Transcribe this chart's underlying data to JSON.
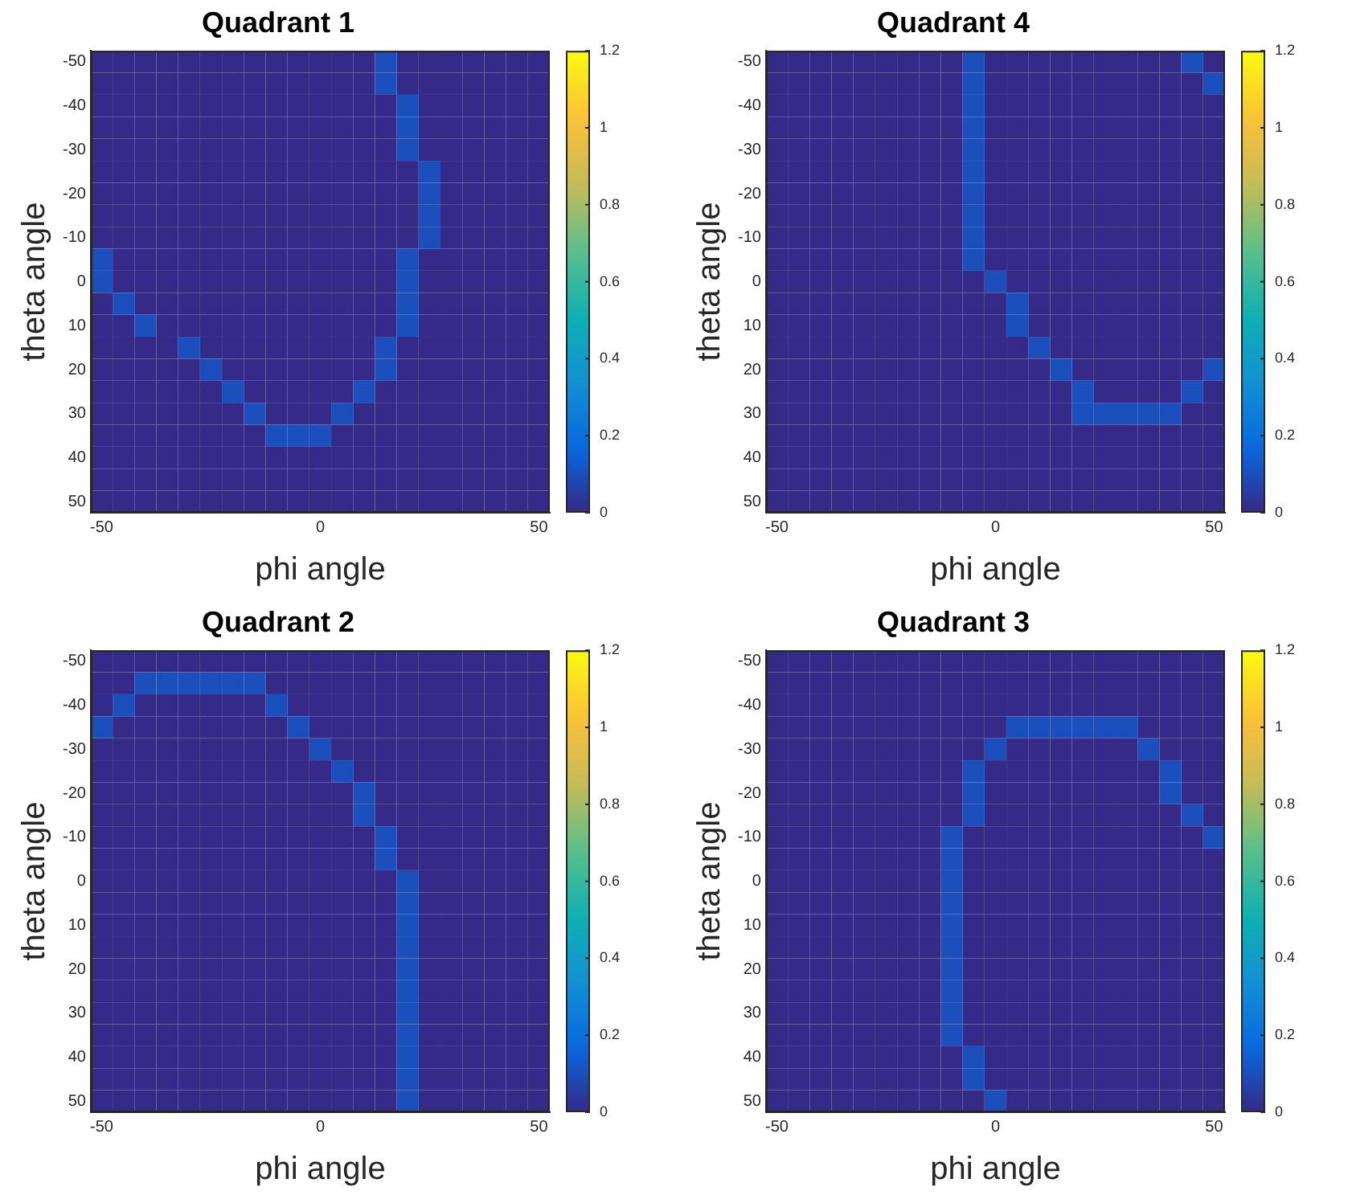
{
  "chart_data": [
    {
      "type": "heatmap",
      "title": "Quadrant 1",
      "xlabel": "phi angle",
      "ylabel": "theta angle",
      "categories": [
        "-50",
        null,
        null,
        null,
        null,
        null,
        null,
        null,
        null,
        null,
        "0",
        null,
        null,
        null,
        null,
        null,
        null,
        null,
        null,
        null,
        "50"
      ],
      "y_categories": [
        "-50",
        null,
        "-40",
        null,
        "-30",
        null,
        "-20",
        null,
        "-10",
        null,
        "0",
        null,
        "10",
        null,
        "20",
        null,
        "30",
        null,
        "40",
        null,
        "50"
      ],
      "clim": [
        0,
        1.2
      ],
      "cticks": [
        0,
        0.2,
        0.4,
        0.6,
        0.8,
        1,
        1.2
      ],
      "cells": [
        [
          0,
          0,
          0,
          0,
          0,
          0,
          0,
          0,
          0,
          0,
          0,
          0,
          0,
          0.1,
          0,
          0,
          0,
          0,
          0,
          0,
          0
        ],
        [
          0,
          0,
          0,
          0,
          0,
          0,
          0,
          0,
          0,
          0,
          0,
          0,
          0,
          0.1,
          0,
          0,
          0,
          0,
          0,
          0,
          0
        ],
        [
          0,
          0,
          0,
          0,
          0,
          0,
          0,
          0,
          0,
          0,
          0,
          0,
          0,
          0,
          0.1,
          0,
          0,
          0,
          0,
          0,
          0
        ],
        [
          0,
          0,
          0,
          0,
          0,
          0,
          0,
          0,
          0,
          0,
          0,
          0,
          0,
          0,
          0.1,
          0,
          0,
          0,
          0,
          0,
          0
        ],
        [
          0,
          0,
          0,
          0,
          0,
          0,
          0,
          0,
          0,
          0,
          0,
          0,
          0,
          0,
          0.1,
          0,
          0,
          0,
          0,
          0,
          0
        ],
        [
          0,
          0,
          0,
          0,
          0,
          0,
          0,
          0,
          0,
          0,
          0,
          0,
          0,
          0,
          0,
          0.1,
          0,
          0,
          0,
          0,
          0
        ],
        [
          0,
          0,
          0,
          0,
          0,
          0,
          0,
          0,
          0,
          0,
          0,
          0,
          0,
          0,
          0,
          0.1,
          0,
          0,
          0,
          0,
          0
        ],
        [
          0,
          0,
          0,
          0,
          0,
          0,
          0,
          0,
          0,
          0,
          0,
          0,
          0,
          0,
          0,
          0.1,
          0,
          0,
          0,
          0,
          0
        ],
        [
          0,
          0,
          0,
          0,
          0,
          0,
          0,
          0,
          0,
          0,
          0,
          0,
          0,
          0,
          0,
          0.1,
          0,
          0,
          0,
          0,
          0
        ],
        [
          0.1,
          0,
          0,
          0,
          0,
          0,
          0,
          0,
          0,
          0,
          0,
          0,
          0,
          0,
          0.1,
          0,
          0,
          0,
          0,
          0,
          0
        ],
        [
          0.1,
          0,
          0,
          0,
          0,
          0,
          0,
          0,
          0,
          0,
          0,
          0,
          0,
          0,
          0.1,
          0,
          0,
          0,
          0,
          0,
          0
        ],
        [
          0,
          0.1,
          0,
          0,
          0,
          0,
          0,
          0,
          0,
          0,
          0,
          0,
          0,
          0,
          0.1,
          0,
          0,
          0,
          0,
          0,
          0
        ],
        [
          0,
          0,
          0.1,
          0,
          0,
          0,
          0,
          0,
          0,
          0,
          0,
          0,
          0,
          0,
          0.1,
          0,
          0,
          0,
          0,
          0,
          0
        ],
        [
          0,
          0,
          0,
          0,
          0.1,
          0,
          0,
          0,
          0,
          0,
          0,
          0,
          0,
          0.1,
          0,
          0,
          0,
          0,
          0,
          0,
          0
        ],
        [
          0,
          0,
          0,
          0,
          0,
          0.1,
          0,
          0,
          0,
          0,
          0,
          0,
          0,
          0.1,
          0,
          0,
          0,
          0,
          0,
          0,
          0
        ],
        [
          0,
          0,
          0,
          0,
          0,
          0,
          0.1,
          0,
          0,
          0,
          0,
          0,
          0.1,
          0,
          0,
          0,
          0,
          0,
          0,
          0,
          0
        ],
        [
          0,
          0,
          0,
          0,
          0,
          0,
          0,
          0.1,
          0,
          0,
          0,
          0.1,
          0,
          0,
          0,
          0,
          0,
          0,
          0,
          0,
          0
        ],
        [
          0,
          0,
          0,
          0,
          0,
          0,
          0,
          0,
          0.1,
          0.1,
          0.1,
          0,
          0,
          0,
          0,
          0,
          0,
          0,
          0,
          0,
          0
        ],
        [
          0,
          0,
          0,
          0,
          0,
          0,
          0,
          0,
          0,
          0,
          0,
          0,
          0,
          0,
          0,
          0,
          0,
          0,
          0,
          0,
          0
        ],
        [
          0,
          0,
          0,
          0,
          0,
          0,
          0,
          0,
          0,
          0,
          0,
          0,
          0,
          0,
          0,
          0,
          0,
          0,
          0,
          0,
          0
        ],
        [
          0,
          0,
          0,
          0,
          0,
          0,
          0,
          0,
          0,
          0,
          0,
          0,
          0,
          0,
          0,
          0,
          0,
          0,
          0,
          0,
          0
        ]
      ]
    },
    {
      "type": "heatmap",
      "title": "Quadrant 4",
      "xlabel": "phi angle",
      "ylabel": "theta angle",
      "categories": [
        "-50",
        null,
        null,
        null,
        null,
        null,
        null,
        null,
        null,
        null,
        "0",
        null,
        null,
        null,
        null,
        null,
        null,
        null,
        null,
        null,
        "50"
      ],
      "y_categories": [
        "-50",
        null,
        "-40",
        null,
        "-30",
        null,
        "-20",
        null,
        "-10",
        null,
        "0",
        null,
        "10",
        null,
        "20",
        null,
        "30",
        null,
        "40",
        null,
        "50"
      ],
      "clim": [
        0,
        1.2
      ],
      "cticks": [
        0,
        0.2,
        0.4,
        0.6,
        0.8,
        1,
        1.2
      ],
      "cells": [
        [
          0,
          0,
          0,
          0,
          0,
          0,
          0,
          0,
          0,
          0.1,
          0,
          0,
          0,
          0,
          0,
          0,
          0,
          0,
          0,
          0.1,
          0
        ],
        [
          0,
          0,
          0,
          0,
          0,
          0,
          0,
          0,
          0,
          0.1,
          0,
          0,
          0,
          0,
          0,
          0,
          0,
          0,
          0,
          0,
          0.1
        ],
        [
          0,
          0,
          0,
          0,
          0,
          0,
          0,
          0,
          0,
          0.1,
          0,
          0,
          0,
          0,
          0,
          0,
          0,
          0,
          0,
          0,
          0
        ],
        [
          0,
          0,
          0,
          0,
          0,
          0,
          0,
          0,
          0,
          0.1,
          0,
          0,
          0,
          0,
          0,
          0,
          0,
          0,
          0,
          0,
          0
        ],
        [
          0,
          0,
          0,
          0,
          0,
          0,
          0,
          0,
          0,
          0.1,
          0,
          0,
          0,
          0,
          0,
          0,
          0,
          0,
          0,
          0,
          0
        ],
        [
          0,
          0,
          0,
          0,
          0,
          0,
          0,
          0,
          0,
          0.1,
          0,
          0,
          0,
          0,
          0,
          0,
          0,
          0,
          0,
          0,
          0
        ],
        [
          0,
          0,
          0,
          0,
          0,
          0,
          0,
          0,
          0,
          0.1,
          0,
          0,
          0,
          0,
          0,
          0,
          0,
          0,
          0,
          0,
          0
        ],
        [
          0,
          0,
          0,
          0,
          0,
          0,
          0,
          0,
          0,
          0.1,
          0,
          0,
          0,
          0,
          0,
          0,
          0,
          0,
          0,
          0,
          0
        ],
        [
          0,
          0,
          0,
          0,
          0,
          0,
          0,
          0,
          0,
          0.1,
          0,
          0,
          0,
          0,
          0,
          0,
          0,
          0,
          0,
          0,
          0
        ],
        [
          0,
          0,
          0,
          0,
          0,
          0,
          0,
          0,
          0,
          0.1,
          0,
          0,
          0,
          0,
          0,
          0,
          0,
          0,
          0,
          0,
          0
        ],
        [
          0,
          0,
          0,
          0,
          0,
          0,
          0,
          0,
          0,
          0,
          0.1,
          0,
          0,
          0,
          0,
          0,
          0,
          0,
          0,
          0,
          0
        ],
        [
          0,
          0,
          0,
          0,
          0,
          0,
          0,
          0,
          0,
          0,
          0,
          0.1,
          0,
          0,
          0,
          0,
          0,
          0,
          0,
          0,
          0
        ],
        [
          0,
          0,
          0,
          0,
          0,
          0,
          0,
          0,
          0,
          0,
          0,
          0.1,
          0,
          0,
          0,
          0,
          0,
          0,
          0,
          0,
          0
        ],
        [
          0,
          0,
          0,
          0,
          0,
          0,
          0,
          0,
          0,
          0,
          0,
          0,
          0.1,
          0,
          0,
          0,
          0,
          0,
          0,
          0,
          0
        ],
        [
          0,
          0,
          0,
          0,
          0,
          0,
          0,
          0,
          0,
          0,
          0,
          0,
          0,
          0.1,
          0,
          0,
          0,
          0,
          0,
          0,
          0.1
        ],
        [
          0,
          0,
          0,
          0,
          0,
          0,
          0,
          0,
          0,
          0,
          0,
          0,
          0,
          0,
          0.1,
          0,
          0,
          0,
          0,
          0.1,
          0
        ],
        [
          0,
          0,
          0,
          0,
          0,
          0,
          0,
          0,
          0,
          0,
          0,
          0,
          0,
          0,
          0.1,
          0.1,
          0.1,
          0.1,
          0.1,
          0,
          0
        ],
        [
          0,
          0,
          0,
          0,
          0,
          0,
          0,
          0,
          0,
          0,
          0,
          0,
          0,
          0,
          0,
          0,
          0,
          0,
          0,
          0,
          0
        ],
        [
          0,
          0,
          0,
          0,
          0,
          0,
          0,
          0,
          0,
          0,
          0,
          0,
          0,
          0,
          0,
          0,
          0,
          0,
          0,
          0,
          0
        ],
        [
          0,
          0,
          0,
          0,
          0,
          0,
          0,
          0,
          0,
          0,
          0,
          0,
          0,
          0,
          0,
          0,
          0,
          0,
          0,
          0,
          0
        ],
        [
          0,
          0,
          0,
          0,
          0,
          0,
          0,
          0,
          0,
          0,
          0,
          0,
          0,
          0,
          0,
          0,
          0,
          0,
          0,
          0,
          0
        ]
      ]
    },
    {
      "type": "heatmap",
      "title": "Quadrant 2",
      "xlabel": "phi angle",
      "ylabel": "theta angle",
      "categories": [
        "-50",
        null,
        null,
        null,
        null,
        null,
        null,
        null,
        null,
        null,
        "0",
        null,
        null,
        null,
        null,
        null,
        null,
        null,
        null,
        null,
        "50"
      ],
      "y_categories": [
        "-50",
        null,
        "-40",
        null,
        "-30",
        null,
        "-20",
        null,
        "-10",
        null,
        "0",
        null,
        "10",
        null,
        "20",
        null,
        "30",
        null,
        "40",
        null,
        "50"
      ],
      "clim": [
        0,
        1.2
      ],
      "cticks": [
        0,
        0.2,
        0.4,
        0.6,
        0.8,
        1,
        1.2
      ],
      "cells": [
        [
          0,
          0,
          0,
          0,
          0,
          0,
          0,
          0,
          0,
          0,
          0,
          0,
          0,
          0,
          0,
          0,
          0,
          0,
          0,
          0,
          0
        ],
        [
          0,
          0,
          0.1,
          0.1,
          0.1,
          0.1,
          0.1,
          0.1,
          0,
          0,
          0,
          0,
          0,
          0,
          0,
          0,
          0,
          0,
          0,
          0,
          0
        ],
        [
          0,
          0.1,
          0,
          0,
          0,
          0,
          0,
          0,
          0.1,
          0,
          0,
          0,
          0,
          0,
          0,
          0,
          0,
          0,
          0,
          0,
          0
        ],
        [
          0.1,
          0,
          0,
          0,
          0,
          0,
          0,
          0,
          0,
          0.1,
          0,
          0,
          0,
          0,
          0,
          0,
          0,
          0,
          0,
          0,
          0
        ],
        [
          0,
          0,
          0,
          0,
          0,
          0,
          0,
          0,
          0,
          0,
          0.1,
          0,
          0,
          0,
          0,
          0,
          0,
          0,
          0,
          0,
          0
        ],
        [
          0,
          0,
          0,
          0,
          0,
          0,
          0,
          0,
          0,
          0,
          0,
          0.1,
          0,
          0,
          0,
          0,
          0,
          0,
          0,
          0,
          0
        ],
        [
          0,
          0,
          0,
          0,
          0,
          0,
          0,
          0,
          0,
          0,
          0,
          0,
          0.1,
          0,
          0,
          0,
          0,
          0,
          0,
          0,
          0
        ],
        [
          0,
          0,
          0,
          0,
          0,
          0,
          0,
          0,
          0,
          0,
          0,
          0,
          0.1,
          0,
          0,
          0,
          0,
          0,
          0,
          0,
          0
        ],
        [
          0,
          0,
          0,
          0,
          0,
          0,
          0,
          0,
          0,
          0,
          0,
          0,
          0,
          0.1,
          0,
          0,
          0,
          0,
          0,
          0,
          0
        ],
        [
          0,
          0,
          0,
          0,
          0,
          0,
          0,
          0,
          0,
          0,
          0,
          0,
          0,
          0.1,
          0,
          0,
          0,
          0,
          0,
          0,
          0
        ],
        [
          0,
          0,
          0,
          0,
          0,
          0,
          0,
          0,
          0,
          0,
          0,
          0,
          0,
          0,
          0.1,
          0,
          0,
          0,
          0,
          0,
          0
        ],
        [
          0,
          0,
          0,
          0,
          0,
          0,
          0,
          0,
          0,
          0,
          0,
          0,
          0,
          0,
          0.1,
          0,
          0,
          0,
          0,
          0,
          0
        ],
        [
          0,
          0,
          0,
          0,
          0,
          0,
          0,
          0,
          0,
          0,
          0,
          0,
          0,
          0,
          0.1,
          0,
          0,
          0,
          0,
          0,
          0
        ],
        [
          0,
          0,
          0,
          0,
          0,
          0,
          0,
          0,
          0,
          0,
          0,
          0,
          0,
          0,
          0.1,
          0,
          0,
          0,
          0,
          0,
          0
        ],
        [
          0,
          0,
          0,
          0,
          0,
          0,
          0,
          0,
          0,
          0,
          0,
          0,
          0,
          0,
          0.1,
          0,
          0,
          0,
          0,
          0,
          0
        ],
        [
          0,
          0,
          0,
          0,
          0,
          0,
          0,
          0,
          0,
          0,
          0,
          0,
          0,
          0,
          0.1,
          0,
          0,
          0,
          0,
          0,
          0
        ],
        [
          0,
          0,
          0,
          0,
          0,
          0,
          0,
          0,
          0,
          0,
          0,
          0,
          0,
          0,
          0.1,
          0,
          0,
          0,
          0,
          0,
          0
        ],
        [
          0,
          0,
          0,
          0,
          0,
          0,
          0,
          0,
          0,
          0,
          0,
          0,
          0,
          0,
          0.1,
          0,
          0,
          0,
          0,
          0,
          0
        ],
        [
          0,
          0,
          0,
          0,
          0,
          0,
          0,
          0,
          0,
          0,
          0,
          0,
          0,
          0,
          0.1,
          0,
          0,
          0,
          0,
          0,
          0
        ],
        [
          0,
          0,
          0,
          0,
          0,
          0,
          0,
          0,
          0,
          0,
          0,
          0,
          0,
          0,
          0.1,
          0,
          0,
          0,
          0,
          0,
          0
        ],
        [
          0,
          0,
          0,
          0,
          0,
          0,
          0,
          0,
          0,
          0,
          0,
          0,
          0,
          0,
          0.1,
          0,
          0,
          0,
          0,
          0,
          0
        ]
      ]
    },
    {
      "type": "heatmap",
      "title": "Quadrant 3",
      "xlabel": "phi angle",
      "ylabel": "theta angle",
      "categories": [
        "-50",
        null,
        null,
        null,
        null,
        null,
        null,
        null,
        null,
        null,
        "0",
        null,
        null,
        null,
        null,
        null,
        null,
        null,
        null,
        null,
        "50"
      ],
      "y_categories": [
        "-50",
        null,
        "-40",
        null,
        "-30",
        null,
        "-20",
        null,
        "-10",
        null,
        "0",
        null,
        "10",
        null,
        "20",
        null,
        "30",
        null,
        "40",
        null,
        "50"
      ],
      "clim": [
        0,
        1.2
      ],
      "cticks": [
        0,
        0.2,
        0.4,
        0.6,
        0.8,
        1,
        1.2
      ],
      "cells": [
        [
          0,
          0,
          0,
          0,
          0,
          0,
          0,
          0,
          0,
          0,
          0,
          0,
          0,
          0,
          0,
          0,
          0,
          0,
          0,
          0,
          0
        ],
        [
          0,
          0,
          0,
          0,
          0,
          0,
          0,
          0,
          0,
          0,
          0,
          0,
          0,
          0,
          0,
          0,
          0,
          0,
          0,
          0,
          0
        ],
        [
          0,
          0,
          0,
          0,
          0,
          0,
          0,
          0,
          0,
          0,
          0,
          0,
          0,
          0,
          0,
          0,
          0,
          0,
          0,
          0,
          0
        ],
        [
          0,
          0,
          0,
          0,
          0,
          0,
          0,
          0,
          0,
          0,
          0,
          0.1,
          0.1,
          0.1,
          0.1,
          0.1,
          0.1,
          0,
          0,
          0,
          0
        ],
        [
          0,
          0,
          0,
          0,
          0,
          0,
          0,
          0,
          0,
          0,
          0.1,
          0,
          0,
          0,
          0,
          0,
          0,
          0.1,
          0,
          0,
          0
        ],
        [
          0,
          0,
          0,
          0,
          0,
          0,
          0,
          0,
          0,
          0.1,
          0,
          0,
          0,
          0,
          0,
          0,
          0,
          0,
          0.1,
          0,
          0
        ],
        [
          0,
          0,
          0,
          0,
          0,
          0,
          0,
          0,
          0,
          0.1,
          0,
          0,
          0,
          0,
          0,
          0,
          0,
          0,
          0.1,
          0,
          0
        ],
        [
          0,
          0,
          0,
          0,
          0,
          0,
          0,
          0,
          0,
          0.1,
          0,
          0,
          0,
          0,
          0,
          0,
          0,
          0,
          0,
          0.1,
          0
        ],
        [
          0,
          0,
          0,
          0,
          0,
          0,
          0,
          0,
          0.1,
          0,
          0,
          0,
          0,
          0,
          0,
          0,
          0,
          0,
          0,
          0,
          0.1
        ],
        [
          0,
          0,
          0,
          0,
          0,
          0,
          0,
          0,
          0.1,
          0,
          0,
          0,
          0,
          0,
          0,
          0,
          0,
          0,
          0,
          0,
          0
        ],
        [
          0,
          0,
          0,
          0,
          0,
          0,
          0,
          0,
          0.1,
          0,
          0,
          0,
          0,
          0,
          0,
          0,
          0,
          0,
          0,
          0,
          0
        ],
        [
          0,
          0,
          0,
          0,
          0,
          0,
          0,
          0,
          0.1,
          0,
          0,
          0,
          0,
          0,
          0,
          0,
          0,
          0,
          0,
          0,
          0
        ],
        [
          0,
          0,
          0,
          0,
          0,
          0,
          0,
          0,
          0.1,
          0,
          0,
          0,
          0,
          0,
          0,
          0,
          0,
          0,
          0,
          0,
          0
        ],
        [
          0,
          0,
          0,
          0,
          0,
          0,
          0,
          0,
          0.1,
          0,
          0,
          0,
          0,
          0,
          0,
          0,
          0,
          0,
          0,
          0,
          0
        ],
        [
          0,
          0,
          0,
          0,
          0,
          0,
          0,
          0,
          0.1,
          0,
          0,
          0,
          0,
          0,
          0,
          0,
          0,
          0,
          0,
          0,
          0
        ],
        [
          0,
          0,
          0,
          0,
          0,
          0,
          0,
          0,
          0.1,
          0,
          0,
          0,
          0,
          0,
          0,
          0,
          0,
          0,
          0,
          0,
          0
        ],
        [
          0,
          0,
          0,
          0,
          0,
          0,
          0,
          0,
          0.1,
          0,
          0,
          0,
          0,
          0,
          0,
          0,
          0,
          0,
          0,
          0,
          0
        ],
        [
          0,
          0,
          0,
          0,
          0,
          0,
          0,
          0,
          0.1,
          0,
          0,
          0,
          0,
          0,
          0,
          0,
          0,
          0,
          0,
          0,
          0
        ],
        [
          0,
          0,
          0,
          0,
          0,
          0,
          0,
          0,
          0,
          0.1,
          0,
          0,
          0,
          0,
          0,
          0,
          0,
          0,
          0,
          0,
          0
        ],
        [
          0,
          0,
          0,
          0,
          0,
          0,
          0,
          0,
          0,
          0.1,
          0,
          0,
          0,
          0,
          0,
          0,
          0,
          0,
          0,
          0,
          0
        ],
        [
          0,
          0,
          0,
          0,
          0,
          0,
          0,
          0,
          0,
          0,
          0.1,
          0,
          0,
          0,
          0,
          0,
          0,
          0,
          0,
          0,
          0
        ]
      ]
    }
  ]
}
